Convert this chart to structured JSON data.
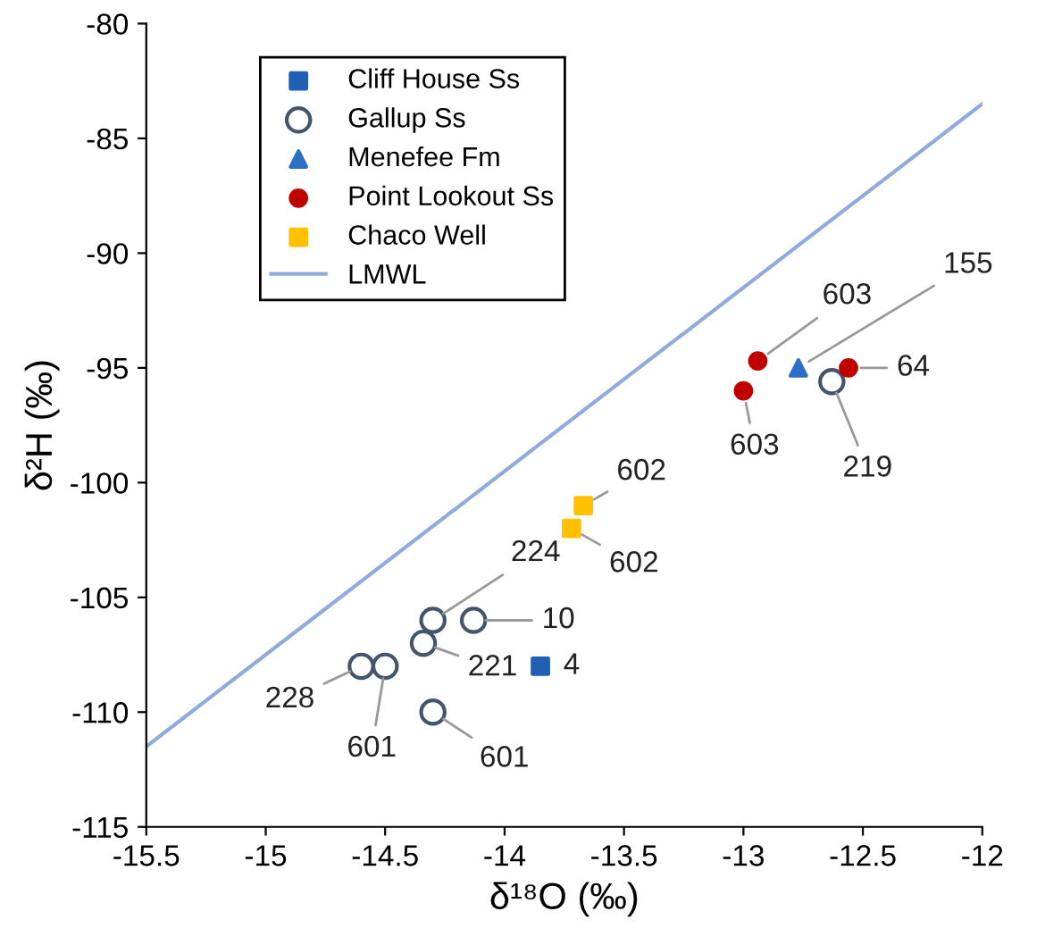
{
  "chart_data": {
    "type": "scatter",
    "xlabel": "δ¹⁸O (‰)",
    "ylabel": "δ²H (‰)",
    "xlim": [
      -15.5,
      -12
    ],
    "xticks": [
      -15.5,
      -15,
      -14.5,
      -14,
      -13.5,
      -13,
      -12.5,
      -12
    ],
    "ylim": [
      -115,
      -80
    ],
    "yticks": [
      -115,
      -110,
      -105,
      -100,
      -95,
      -90,
      -85,
      -80
    ],
    "grid": false,
    "legend": "top left",
    "series": [
      {
        "name": "Cliff House Ss",
        "marker": "square",
        "color": "#1f5fb4",
        "x": [
          -13.85
        ],
        "values": [
          -108
        ]
      },
      {
        "name": "Gallup Ss",
        "marker": "open circle",
        "color": "#44546a",
        "x": [
          -14.3,
          -14.13,
          -14.34,
          -14.6,
          -14.5,
          -14.3,
          -12.63
        ],
        "values": [
          -106,
          -106,
          -107,
          -108,
          -108,
          -110,
          -95.6
        ]
      },
      {
        "name": "Menefee Fm",
        "marker": "triangle",
        "color": "#2e6fc6",
        "x": [
          -12.77
        ],
        "values": [
          -95
        ]
      },
      {
        "name": "Point Lookout Ss",
        "marker": "circle",
        "color": "#c00000",
        "x": [
          -12.94,
          -13.0,
          -12.56
        ],
        "values": [
          -94.7,
          -96,
          -95
        ]
      },
      {
        "name": "Chaco Well",
        "marker": "square",
        "color": "#ffc000",
        "x": [
          -13.67,
          -13.72
        ],
        "values": [
          -101,
          -102
        ]
      },
      {
        "name": "LMWL",
        "type": "line",
        "marker": "none",
        "color": "#8faadc",
        "x": [
          -15.5,
          -12
        ],
        "values": [
          -111.5,
          -83.5
        ]
      }
    ],
    "annotations": [
      {
        "text": "4",
        "x": -13.85,
        "y": -108
      },
      {
        "text": "224",
        "x": -14.3,
        "y": -106
      },
      {
        "text": "10",
        "x": -14.13,
        "y": -106
      },
      {
        "text": "221",
        "x": -14.34,
        "y": -107
      },
      {
        "text": "228",
        "x": -14.6,
        "y": -108
      },
      {
        "text": "601",
        "x": -14.5,
        "y": -108
      },
      {
        "text": "601",
        "x": -14.3,
        "y": -110
      },
      {
        "text": "219",
        "x": -12.63,
        "y": -95.6
      },
      {
        "text": "155",
        "x": -12.77,
        "y": -95
      },
      {
        "text": "603",
        "x": -13.0,
        "y": -96
      },
      {
        "text": "603",
        "x": -12.94,
        "y": -94.7
      },
      {
        "text": "64",
        "x": -12.56,
        "y": -95
      },
      {
        "text": "602",
        "x": -13.67,
        "y": -101
      },
      {
        "text": "602",
        "x": -13.72,
        "y": -102
      }
    ]
  }
}
